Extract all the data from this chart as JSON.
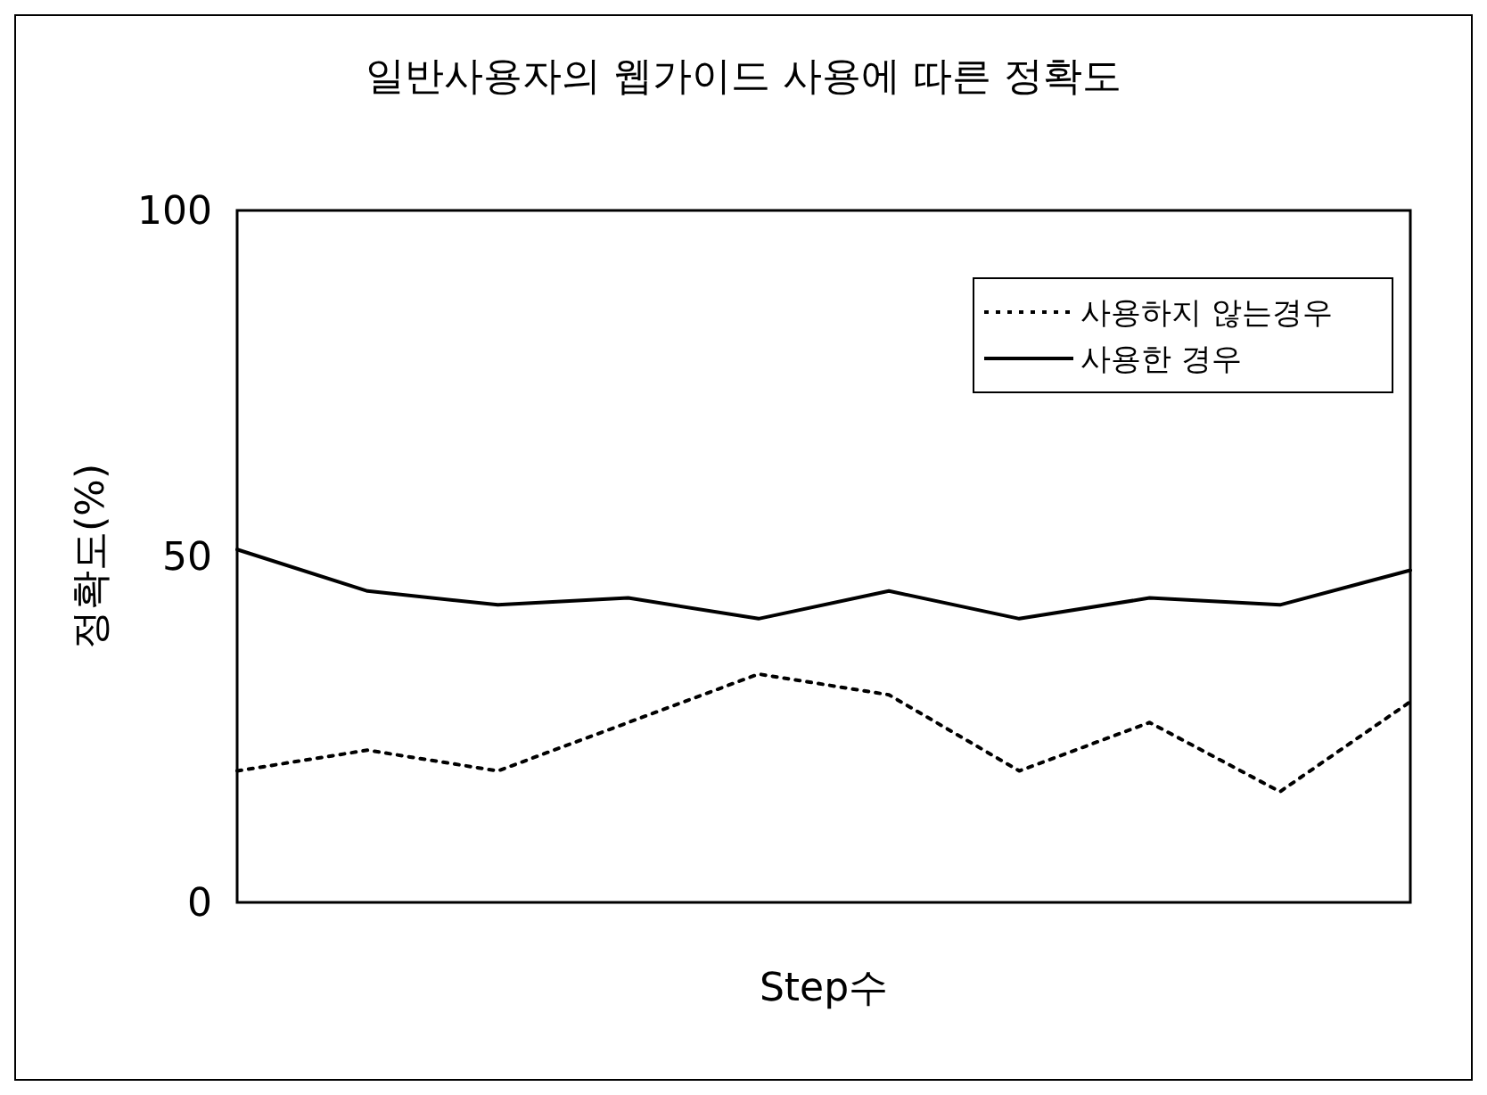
{
  "chart_data": {
    "type": "line",
    "title": "일반사용자의 웹가이드 사용에 따른 정확도",
    "xlabel": "Step수",
    "ylabel": "정확도(%)",
    "categories": [
      null,
      null,
      null,
      null,
      null,
      null,
      null,
      null,
      null,
      null
    ],
    "series": [
      {
        "name": "사용하지 않는경우",
        "color": "#000000",
        "line_style": "dotted",
        "values": [
          19,
          22,
          19,
          26,
          33,
          30,
          19,
          26,
          16,
          29
        ]
      },
      {
        "name": "사용한 경우",
        "color": "#000000",
        "line_style": "solid",
        "values": [
          51,
          45,
          43,
          44,
          41,
          45,
          41,
          44,
          43,
          48
        ]
      }
    ],
    "ylim": [
      0,
      100
    ],
    "yticks": [
      0,
      50,
      100
    ],
    "grid": false,
    "legend": "top right",
    "marker": "none"
  }
}
